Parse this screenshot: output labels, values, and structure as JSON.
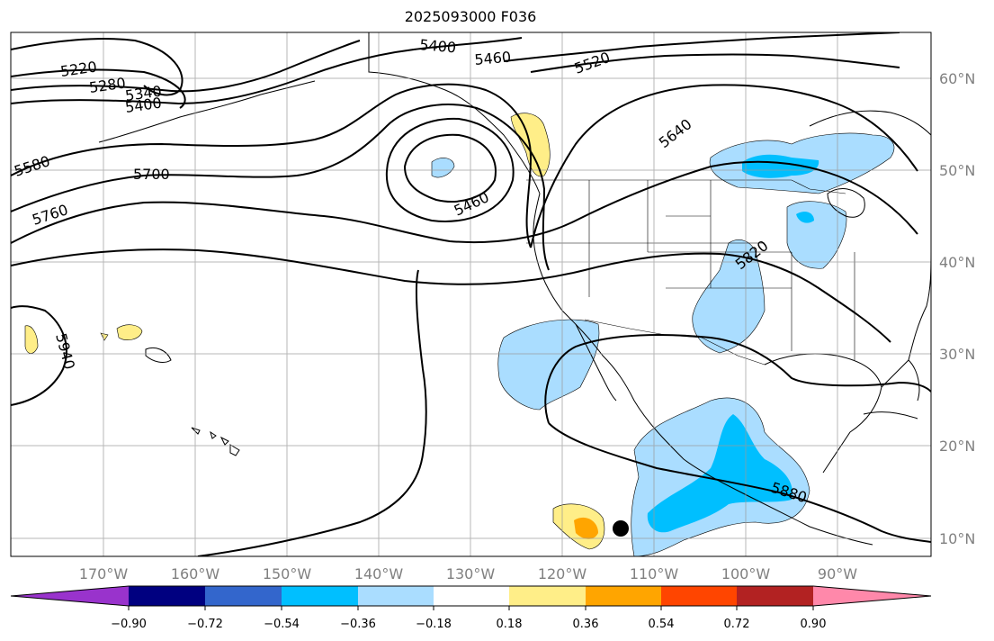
{
  "title": "2025093000 F036",
  "map": {
    "projection": "plate-carree",
    "lon_range": [
      -180,
      -79
    ],
    "lat_range": [
      8,
      65
    ],
    "grid": true,
    "lon_ticks": [
      "170°W",
      "160°W",
      "150°W",
      "140°W",
      "130°W",
      "120°W",
      "110°W",
      "100°W",
      "90°W"
    ],
    "lat_ticks": [
      "10°N",
      "20°N",
      "30°N",
      "40°N",
      "50°N",
      "60°N"
    ],
    "contour_labels": [
      "5220",
      "5280",
      "5340",
      "5400",
      "5400",
      "5460",
      "5460",
      "5520",
      "5580",
      "5640",
      "5700",
      "5760",
      "5820",
      "5880",
      "5940"
    ],
    "marker": {
      "name": "black-dot",
      "lon": -113.5,
      "lat": 11
    }
  },
  "colorbar": {
    "ticks": [
      "−0.90",
      "−0.72",
      "−0.54",
      "−0.36",
      "−0.18",
      "0.18",
      "0.36",
      "0.54",
      "0.72",
      "0.90"
    ],
    "colors": [
      "#9933cc",
      "#000080",
      "#3366cc",
      "#00bfff",
      "#aaddff",
      "#ffffff",
      "#ffee88",
      "#ffa500",
      "#ff4500",
      "#b22222",
      "#ff88aa"
    ]
  }
}
